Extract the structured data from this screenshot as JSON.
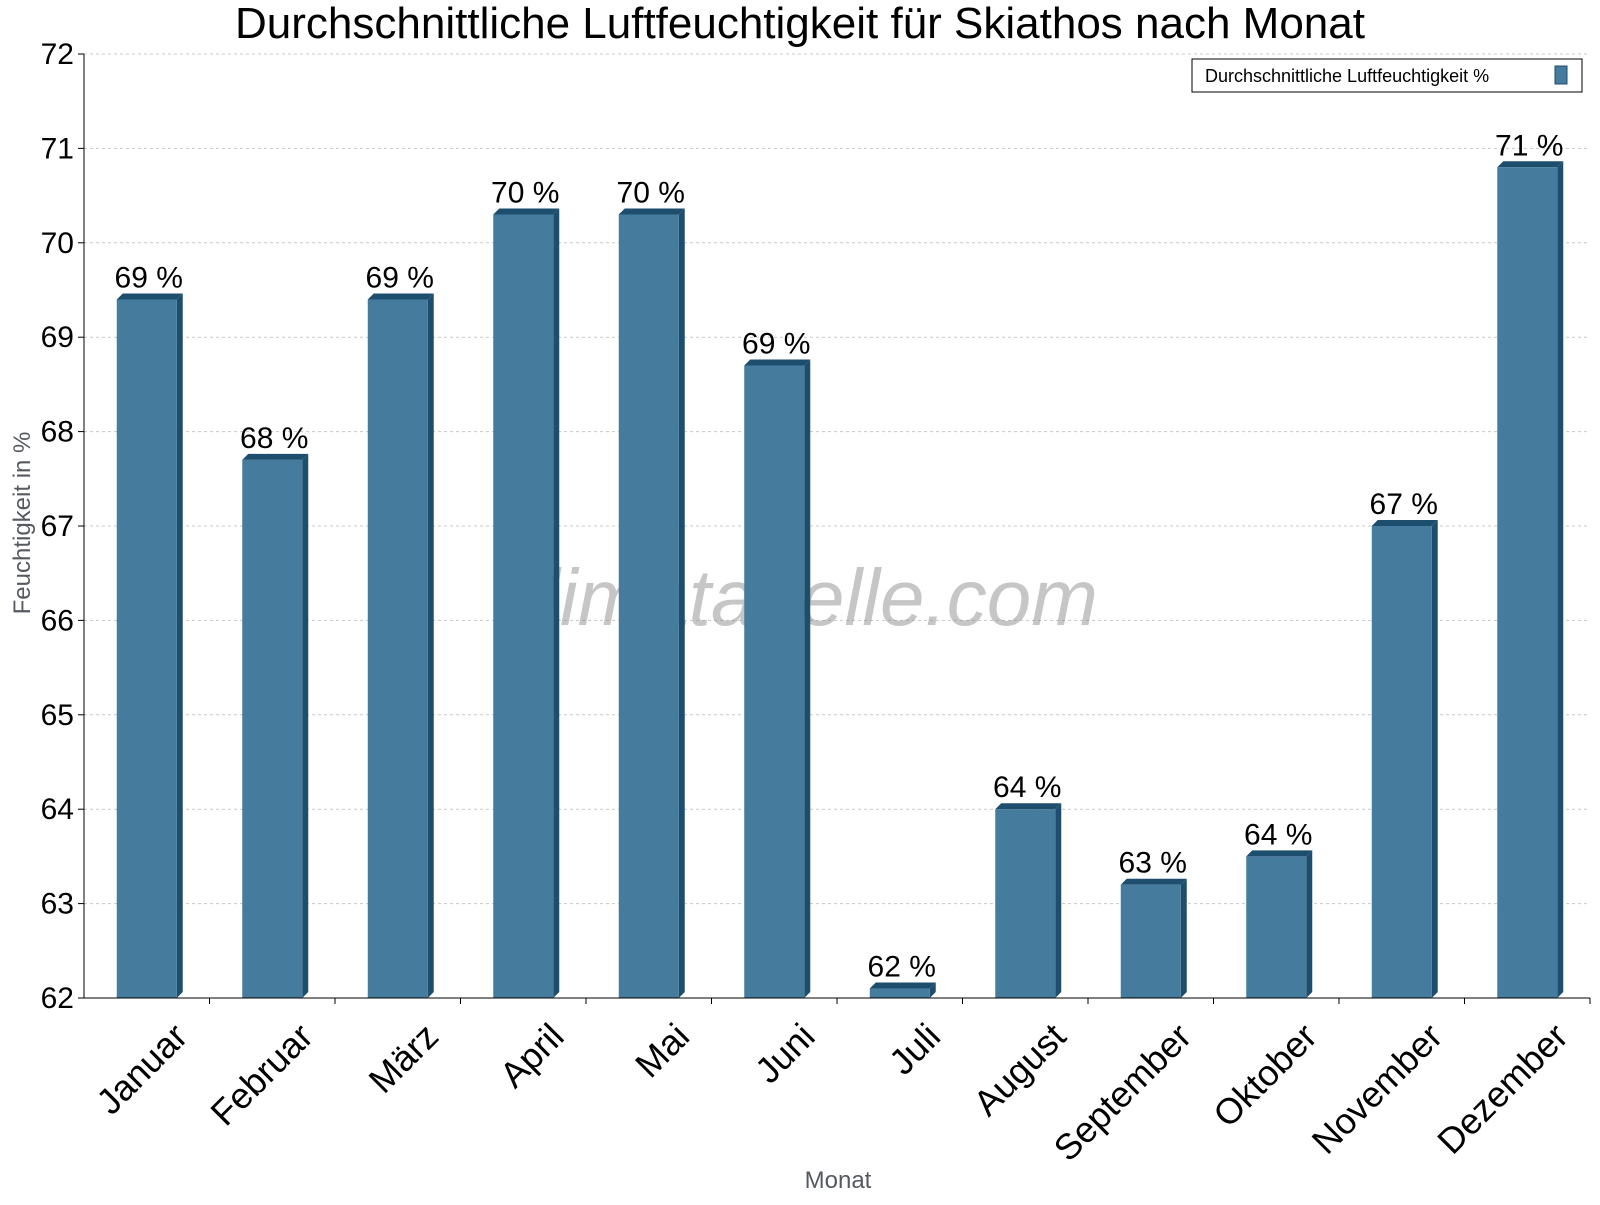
{
  "chart_data": {
    "type": "bar",
    "title": "Durchschnittliche Luftfeuchtigkeit für Skiathos nach Monat",
    "xlabel": "Monat",
    "ylabel": "Feuchtigkeit in %",
    "ylim": [
      62,
      72
    ],
    "yticks": [
      62,
      63,
      64,
      65,
      66,
      67,
      68,
      69,
      70,
      71,
      72
    ],
    "grid": true,
    "legend_position": "top-right",
    "watermark": "klimatabelle.com",
    "colors": {
      "bar": "#457b9d",
      "bar_dark": "#1d4e6e",
      "grid": "#c8c8c8"
    },
    "categories": [
      "Januar",
      "Februar",
      "März",
      "April",
      "Mai",
      "Juni",
      "Juli",
      "August",
      "September",
      "Oktober",
      "November",
      "Dezember"
    ],
    "series": [
      {
        "name": "Durchschnittliche Luftfeuchtigkeit %",
        "values": [
          69.4,
          67.7,
          69.4,
          70.3,
          70.3,
          68.7,
          62.1,
          64.0,
          63.2,
          63.5,
          67.0,
          70.8
        ],
        "labels": [
          "69 %",
          "68 %",
          "69 %",
          "70 %",
          "70 %",
          "69 %",
          "62 %",
          "64 %",
          "63 %",
          "64 %",
          "67 %",
          "71 %"
        ]
      }
    ]
  }
}
